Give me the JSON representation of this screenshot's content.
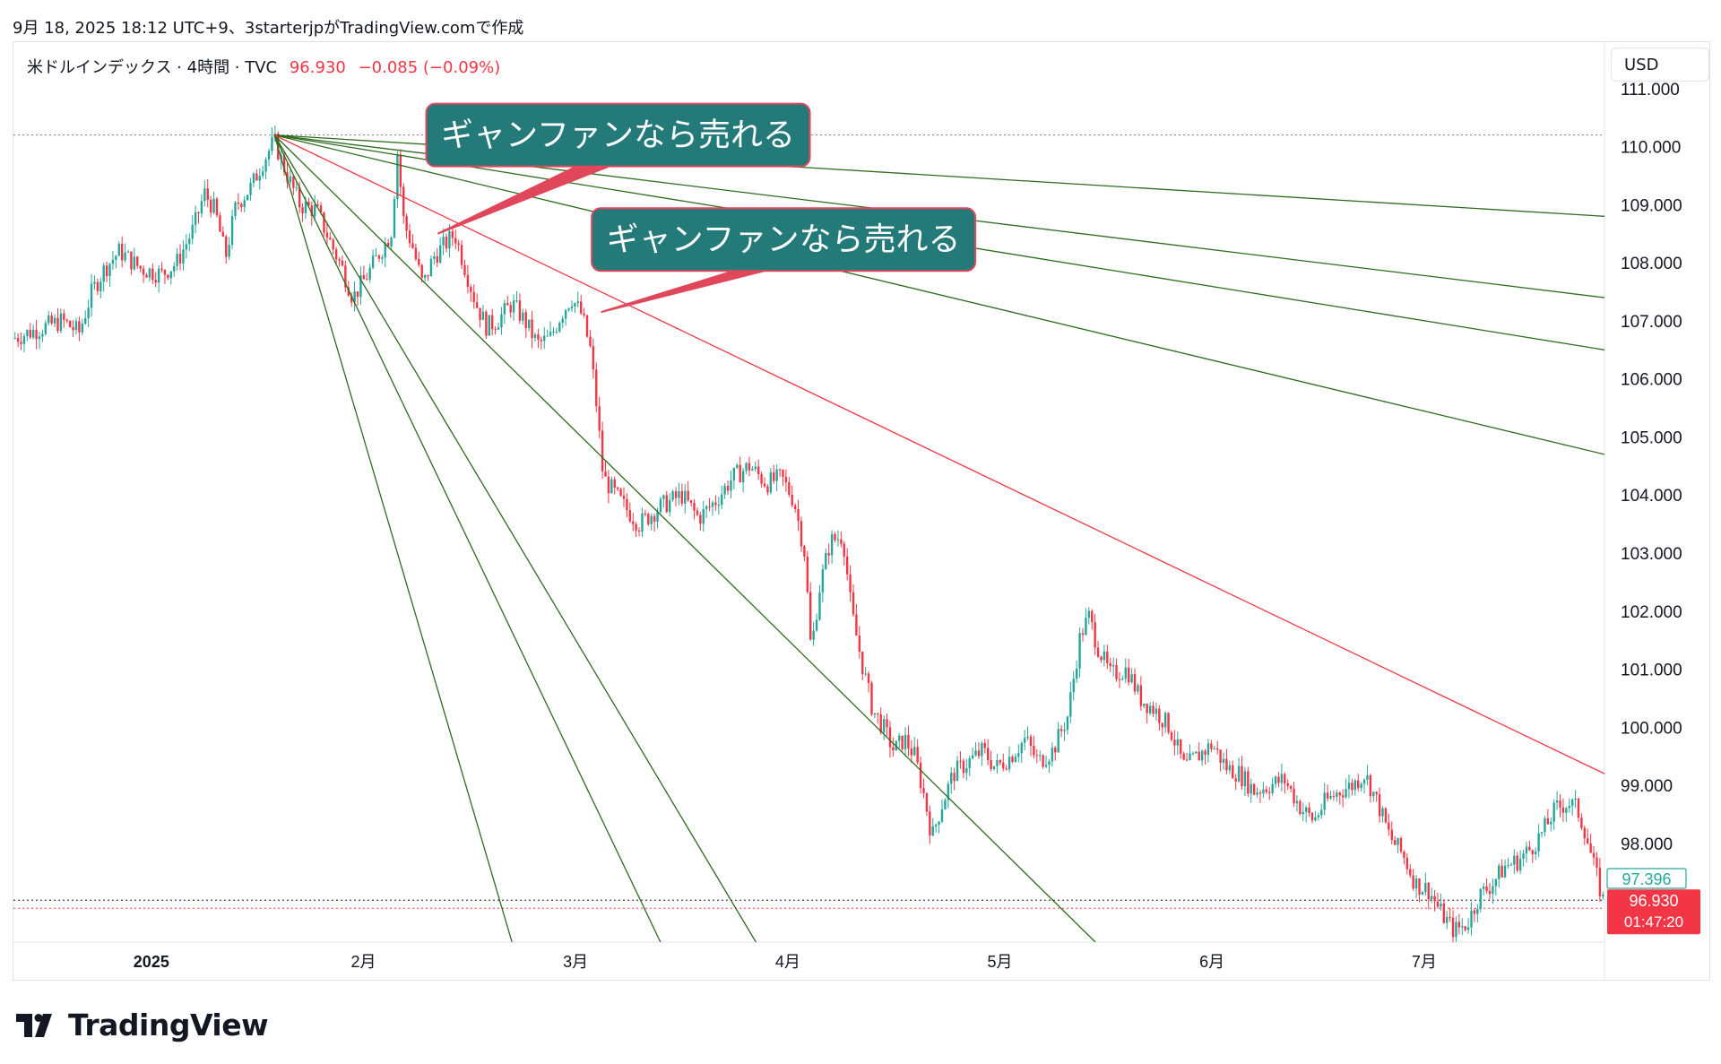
{
  "header": {
    "snapshot_line": "9月 18, 2025 18:12 UTC+9、3starterjpがTradingView.comで作成"
  },
  "legend": {
    "symbol": "米ドルインデックス · 4時間 · TVC",
    "price": "96.930",
    "change": "−0.085 (−0.09%)"
  },
  "currency_button": "USD",
  "brand": {
    "name": "TradingView"
  },
  "colors": {
    "up": "#26a69a",
    "down": "#f23645",
    "fan_green": "#2e6b1f",
    "fan_red": "#f23645",
    "callout_fill": "#247a78",
    "callout_border": "#e0475a"
  },
  "chart_data": {
    "type": "candlestick",
    "ylim": [
      96.3,
      111.8
    ],
    "y_ticks": [
      "111.000",
      "110.000",
      "109.000",
      "108.000",
      "107.000",
      "106.000",
      "105.000",
      "104.000",
      "103.000",
      "102.000",
      "101.000",
      "100.000",
      "99.000",
      "98.000"
    ],
    "x_ticks": [
      {
        "label": "2025",
        "t": 0.0
      },
      {
        "label": "2月",
        "t": 1.0
      },
      {
        "label": "3月",
        "t": 2.0
      },
      {
        "label": "4月",
        "t": 3.0
      },
      {
        "label": "5月",
        "t": 4.0
      },
      {
        "label": "6月",
        "t": 5.0
      },
      {
        "label": "7月",
        "t": 6.0
      }
    ],
    "xlim": [
      -0.65,
      6.85
    ],
    "price_path": [
      [
        -0.65,
        106.7
      ],
      [
        -0.5,
        106.9
      ],
      [
        -0.42,
        107.0
      ],
      [
        -0.34,
        106.8
      ],
      [
        -0.28,
        107.5
      ],
      [
        -0.22,
        107.9
      ],
      [
        -0.15,
        108.2
      ],
      [
        -0.05,
        107.9
      ],
      [
        0.05,
        107.8
      ],
      [
        0.12,
        108.0
      ],
      [
        0.2,
        108.6
      ],
      [
        0.25,
        109.2
      ],
      [
        0.3,
        108.9
      ],
      [
        0.35,
        108.1
      ],
      [
        0.4,
        109.0
      ],
      [
        0.47,
        109.3
      ],
      [
        0.52,
        109.7
      ],
      [
        0.58,
        110.1
      ],
      [
        0.63,
        109.6
      ],
      [
        0.7,
        109.0
      ],
      [
        0.78,
        108.9
      ],
      [
        0.85,
        108.3
      ],
      [
        0.9,
        107.9
      ],
      [
        0.95,
        107.4
      ],
      [
        1.02,
        107.8
      ],
      [
        1.08,
        108.2
      ],
      [
        1.13,
        108.5
      ],
      [
        1.16,
        109.9
      ],
      [
        1.19,
        108.7
      ],
      [
        1.23,
        108.3
      ],
      [
        1.28,
        107.6
      ],
      [
        1.33,
        108.1
      ],
      [
        1.38,
        108.3
      ],
      [
        1.43,
        108.5
      ],
      [
        1.48,
        107.9
      ],
      [
        1.53,
        107.3
      ],
      [
        1.58,
        106.9
      ],
      [
        1.63,
        107.0
      ],
      [
        1.7,
        107.3
      ],
      [
        1.76,
        107.0
      ],
      [
        1.82,
        106.6
      ],
      [
        1.88,
        106.7
      ],
      [
        1.93,
        107.1
      ],
      [
        1.98,
        107.4
      ],
      [
        2.03,
        107.1
      ],
      [
        2.07,
        106.5
      ],
      [
        2.1,
        105.5
      ],
      [
        2.13,
        104.3
      ],
      [
        2.17,
        104.1
      ],
      [
        2.23,
        103.8
      ],
      [
        2.3,
        103.5
      ],
      [
        2.4,
        103.8
      ],
      [
        2.5,
        104.0
      ],
      [
        2.58,
        103.6
      ],
      [
        2.66,
        103.9
      ],
      [
        2.74,
        104.3
      ],
      [
        2.82,
        104.5
      ],
      [
        2.9,
        104.2
      ],
      [
        2.97,
        104.3
      ],
      [
        3.03,
        103.9
      ],
      [
        3.08,
        103.0
      ],
      [
        3.11,
        101.3
      ],
      [
        3.15,
        102.4
      ],
      [
        3.2,
        103.2
      ],
      [
        3.26,
        103.3
      ],
      [
        3.3,
        102.0
      ],
      [
        3.35,
        101.1
      ],
      [
        3.4,
        100.3
      ],
      [
        3.45,
        100.0
      ],
      [
        3.5,
        99.6
      ],
      [
        3.55,
        99.8
      ],
      [
        3.6,
        99.5
      ],
      [
        3.65,
        98.7
      ],
      [
        3.68,
        98.1
      ],
      [
        3.72,
        98.6
      ],
      [
        3.78,
        99.2
      ],
      [
        3.85,
        99.4
      ],
      [
        3.92,
        99.6
      ],
      [
        3.98,
        99.3
      ],
      [
        4.05,
        99.5
      ],
      [
        4.12,
        99.8
      ],
      [
        4.18,
        99.4
      ],
      [
        4.25,
        99.6
      ],
      [
        4.32,
        100.2
      ],
      [
        4.38,
        101.6
      ],
      [
        4.42,
        101.9
      ],
      [
        4.46,
        101.4
      ],
      [
        4.52,
        100.9
      ],
      [
        4.6,
        101.0
      ],
      [
        4.66,
        100.5
      ],
      [
        4.73,
        100.3
      ],
      [
        4.8,
        100.0
      ],
      [
        4.87,
        99.3
      ],
      [
        4.93,
        99.5
      ],
      [
        5.0,
        99.7
      ],
      [
        5.07,
        99.3
      ],
      [
        5.13,
        99.2
      ],
      [
        5.2,
        98.9
      ],
      [
        5.27,
        99.0
      ],
      [
        5.34,
        99.1
      ],
      [
        5.42,
        98.6
      ],
      [
        5.48,
        98.4
      ],
      [
        5.53,
        98.7
      ],
      [
        5.6,
        98.9
      ],
      [
        5.66,
        99.0
      ],
      [
        5.72,
        99.2
      ],
      [
        5.78,
        98.7
      ],
      [
        5.84,
        98.1
      ],
      [
        5.9,
        97.8
      ],
      [
        5.96,
        97.3
      ],
      [
        6.02,
        97.2
      ],
      [
        6.08,
        96.8
      ],
      [
        6.14,
        96.5
      ],
      [
        6.2,
        96.6
      ],
      [
        6.26,
        97.1
      ],
      [
        6.32,
        97.3
      ],
      [
        6.38,
        97.6
      ],
      [
        6.44,
        97.7
      ],
      [
        6.5,
        97.9
      ],
      [
        6.56,
        98.2
      ],
      [
        6.62,
        98.6
      ],
      [
        6.68,
        98.7
      ],
      [
        6.72,
        98.6
      ],
      [
        6.76,
        98.2
      ],
      [
        6.8,
        97.6
      ],
      [
        6.85,
        96.93
      ]
    ],
    "last_price": 96.93,
    "last_price_label": "96.930",
    "countdown_label": "01:47:20",
    "marker_price": 97.396,
    "marker_price_label": "97.396",
    "high_dotted_line": 110.2,
    "drawings": {
      "gann_fan": {
        "origin": [
          0.58,
          110.2
        ],
        "green_lines_end": [
          [
            6.85,
            108.8
          ],
          [
            6.85,
            107.4
          ],
          [
            6.85,
            106.5
          ],
          [
            6.85,
            104.7
          ],
          [
            4.45,
            96.3
          ],
          [
            2.85,
            96.3
          ],
          [
            2.4,
            96.3
          ],
          [
            1.7,
            96.3
          ]
        ],
        "red_line_end": [
          6.85,
          99.2
        ]
      },
      "callouts": [
        {
          "text": "ギャンファンなら売れる",
          "anchor": [
            1.35,
            108.5
          ],
          "box_center": [
            2.2,
            110.2
          ]
        },
        {
          "text": "ギャンファンなら売れる",
          "anchor": [
            2.12,
            107.15
          ],
          "box_center": [
            2.98,
            108.4
          ]
        }
      ]
    }
  }
}
